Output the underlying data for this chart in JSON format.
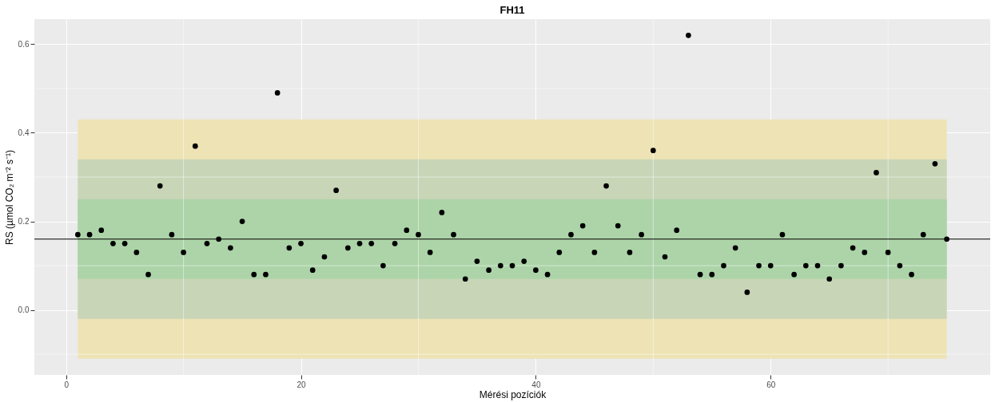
{
  "chart_data": {
    "type": "scatter",
    "title": "FH11",
    "xlabel": "Mérési pozíciók",
    "ylabel": "RS (µmol CO₂ m⁻² s⁻¹)",
    "x": [
      1,
      2,
      3,
      4,
      5,
      6,
      7,
      8,
      9,
      10,
      11,
      12,
      13,
      14,
      15,
      16,
      17,
      18,
      19,
      20,
      21,
      22,
      23,
      24,
      25,
      26,
      27,
      28,
      29,
      30,
      31,
      32,
      33,
      34,
      35,
      36,
      37,
      38,
      39,
      40,
      41,
      42,
      43,
      44,
      45,
      46,
      47,
      48,
      49,
      50,
      51,
      52,
      53,
      54,
      55,
      56,
      57,
      58,
      59,
      60,
      61,
      62,
      63,
      64,
      65,
      66,
      67,
      68,
      69,
      70,
      71,
      72,
      73,
      74,
      75
    ],
    "series": [
      {
        "color": "#000000",
        "values": [
          0.17,
          0.17,
          0.18,
          0.15,
          0.15,
          0.13,
          0.08,
          0.28,
          0.17,
          0.13,
          0.37,
          0.15,
          0.16,
          0.14,
          0.2,
          0.08,
          0.08,
          0.49,
          0.14,
          0.15,
          0.09,
          0.12,
          0.27,
          0.14,
          0.15,
          0.15,
          0.1,
          0.15,
          0.18,
          0.17,
          0.13,
          0.22,
          0.17,
          0.07,
          0.11,
          0.09,
          0.1,
          0.1,
          0.11,
          0.09,
          0.08,
          0.13,
          0.17,
          0.19,
          0.13,
          0.28,
          0.19,
          0.13,
          0.17,
          0.36,
          0.12,
          0.18,
          0.62,
          0.08,
          0.08,
          0.1,
          0.14,
          0.04,
          0.1,
          0.1,
          0.17,
          0.08,
          0.1,
          0.1,
          0.07,
          0.1,
          0.14,
          0.13,
          0.31,
          0.13,
          0.1,
          0.08,
          0.17,
          0.33,
          0.16
        ]
      }
    ],
    "xlim": [
      -2.7,
      78.7
    ],
    "xticks": [
      0,
      20,
      40,
      60
    ],
    "ylim": [
      -0.1465,
      0.6565
    ],
    "yticks": [
      {
        "value": 0,
        "label": "0.0"
      },
      0.2,
      0.4,
      0.6
    ],
    "bands": [
      {
        "axis": "y",
        "from": -0.11,
        "to": 0.43,
        "color": "#ede3b5"
      },
      {
        "axis": "y",
        "from": -0.02,
        "to": 0.34,
        "color": "#c9d5b7"
      },
      {
        "axis": "y",
        "from": 0.07,
        "to": 0.25,
        "color": "#acd4a8"
      }
    ],
    "ref_lines": [
      {
        "axis": "y",
        "value": 0.16,
        "color": "#000000"
      }
    ],
    "grid": true,
    "marker": "circle"
  }
}
